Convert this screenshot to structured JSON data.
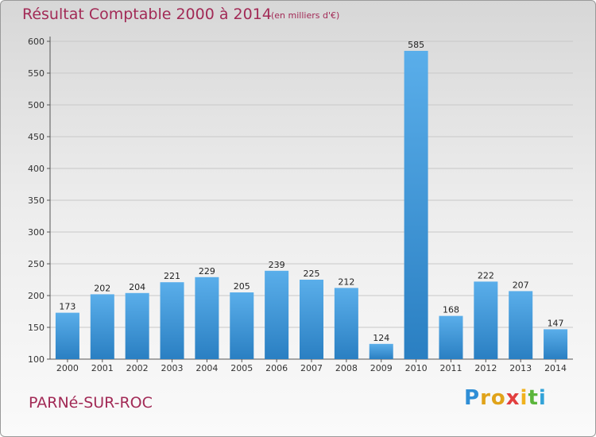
{
  "chart_data": {
    "type": "bar",
    "title": "Résultat Comptable 2000 à 2014",
    "subtitle": "(en milliers d'€)",
    "categories": [
      "2000",
      "2001",
      "2002",
      "2003",
      "2004",
      "2005",
      "2006",
      "2007",
      "2008",
      "2009",
      "2010",
      "2011",
      "2012",
      "2013",
      "2014"
    ],
    "values": [
      173,
      202,
      204,
      221,
      229,
      205,
      239,
      225,
      212,
      124,
      585,
      168,
      222,
      207,
      147
    ],
    "ylim": [
      100,
      600
    ],
    "yticks": [
      100,
      150,
      200,
      250,
      300,
      350,
      400,
      450,
      500,
      550,
      600
    ],
    "grid": true,
    "xlabel": "",
    "ylabel": ""
  },
  "footer": {
    "place": "PARNé-SUR-ROC"
  },
  "logo": {
    "text": "Proxiti"
  },
  "colors": {
    "title": "#a22a56",
    "bar_top": "#5aaeea",
    "bar_bottom": "#2a7fc2",
    "grid": "#c8c8c8"
  }
}
